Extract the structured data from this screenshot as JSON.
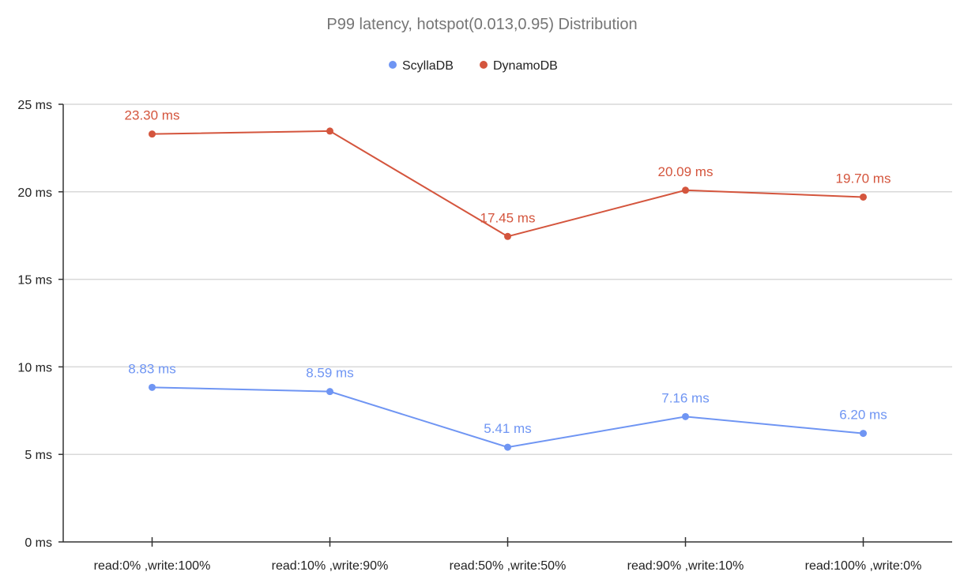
{
  "chart_data": {
    "type": "line",
    "title": "P99 latency, hotspot(0.013,0.95) Distribution",
    "xlabel": "",
    "ylabel": "",
    "categories": [
      "read:0% ,write:100%",
      "read:10% ,write:90%",
      "read:50% ,write:50%",
      "read:90% ,write:10%",
      "read:100% ,write:0%"
    ],
    "ylim": [
      0,
      25
    ],
    "yticks": [
      0,
      5,
      10,
      15,
      20,
      25
    ],
    "ytick_labels": [
      "0 ms",
      "5 ms",
      "10 ms",
      "15 ms",
      "20 ms",
      "25 ms"
    ],
    "grid": true,
    "legend_position": "top",
    "series": [
      {
        "name": "ScyllaDB",
        "color": "#6f95f3",
        "values": [
          8.83,
          8.59,
          5.41,
          7.16,
          6.2
        ],
        "labels": [
          "8.83 ms",
          "8.59 ms",
          "5.41 ms",
          "7.16 ms",
          "6.20 ms"
        ]
      },
      {
        "name": "DynamoDB",
        "color": "#d4553d",
        "values": [
          23.3,
          23.47,
          17.45,
          20.09,
          19.7
        ],
        "labels": [
          "23.30 ms",
          "",
          "17.45 ms",
          "20.09 ms",
          "19.70 ms"
        ]
      }
    ]
  }
}
